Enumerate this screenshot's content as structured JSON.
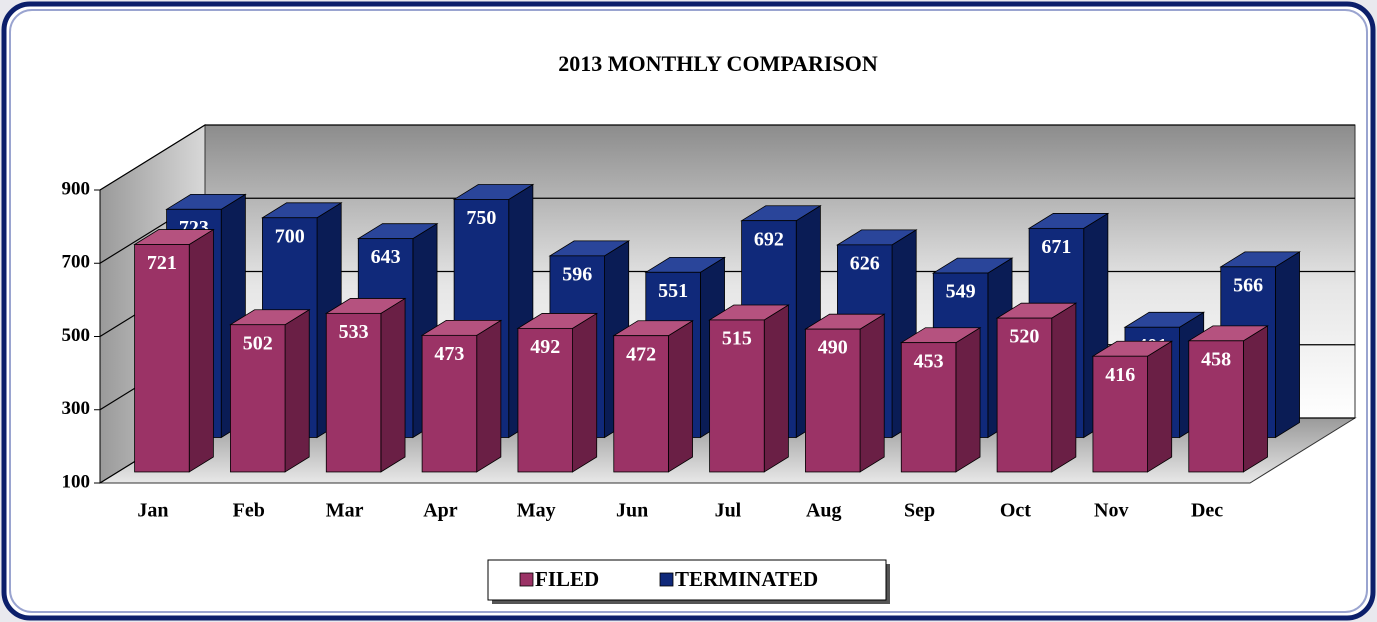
{
  "chart_data": {
    "type": "bar3d",
    "title": "2013 MONTHLY COMPARISON",
    "categories": [
      "Jan",
      "Feb",
      "Mar",
      "Apr",
      "May",
      "Jun",
      "Jul",
      "Aug",
      "Sep",
      "Oct",
      "Nov",
      "Dec"
    ],
    "series": [
      {
        "name": "FILED",
        "color": "#9b3366",
        "values": [
          721,
          502,
          533,
          473,
          492,
          472,
          515,
          490,
          453,
          520,
          416,
          458
        ]
      },
      {
        "name": "TERMINATED",
        "color": "#10297a",
        "values": [
          723,
          700,
          643,
          750,
          596,
          551,
          692,
          626,
          549,
          671,
          401,
          566
        ]
      }
    ],
    "ylim": [
      100,
      900
    ],
    "yticks": [
      100,
      300,
      500,
      700,
      900
    ],
    "grid": true,
    "legend": "bottom"
  }
}
